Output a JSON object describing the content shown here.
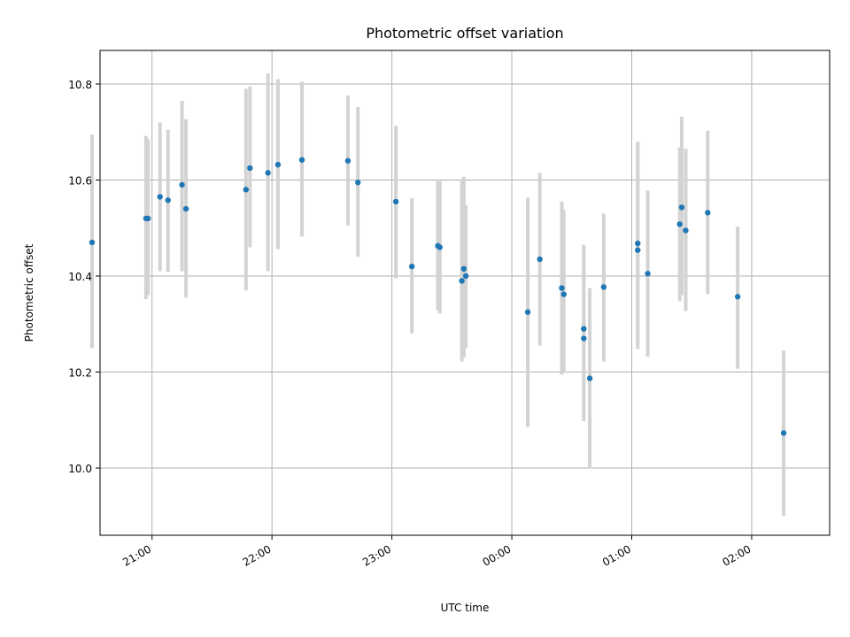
{
  "chart_data": {
    "type": "scatter",
    "title": "Photometric offset variation",
    "xlabel": "UTC time",
    "ylabel": "Photometric offset",
    "xlim": [
      "20:34",
      "02:39"
    ],
    "ylim": [
      9.86,
      10.87
    ],
    "x_ticks": [
      "21:00",
      "22:00",
      "23:00",
      "00:00",
      "01:00",
      "02:00"
    ],
    "y_ticks": [
      "10.0",
      "10.2",
      "10.4",
      "10.6",
      "10.8"
    ],
    "grid": true,
    "colors": {
      "points": "#1f77b4",
      "errorbars": "#d3d3d3",
      "grid": "#b0b0b0"
    },
    "series": [
      {
        "x": [
          "20:30",
          "20:57",
          "20:58",
          "21:04",
          "21:08",
          "21:15",
          "21:17",
          "21:47",
          "21:49",
          "21:58",
          "22:03",
          "22:15",
          "22:38",
          "22:43",
          "23:02",
          "23:10",
          "23:23",
          "23:24",
          "23:35",
          "23:36",
          "23:37",
          "00:08",
          "00:14",
          "00:25",
          "00:26",
          "00:36",
          "00:36",
          "00:39",
          "00:46",
          "01:03",
          "01:03",
          "01:08",
          "01:24",
          "01:25",
          "01:27",
          "01:38",
          "01:53",
          "02:16"
        ],
        "y": [
          10.47,
          10.52,
          10.52,
          10.565,
          10.558,
          10.59,
          10.54,
          10.58,
          10.625,
          10.615,
          10.632,
          10.642,
          10.64,
          10.595,
          10.555,
          10.42,
          10.463,
          10.46,
          10.39,
          10.415,
          10.4,
          10.325,
          10.435,
          10.375,
          10.362,
          10.29,
          10.27,
          10.187,
          10.377,
          10.468,
          10.454,
          10.405,
          10.508,
          10.543,
          10.495,
          10.532,
          10.357,
          10.073
        ],
        "yerr_low": [
          10.25,
          10.352,
          10.36,
          10.41,
          10.408,
          10.41,
          10.355,
          10.37,
          10.46,
          10.41,
          10.456,
          10.482,
          10.505,
          10.44,
          10.395,
          10.28,
          10.328,
          10.322,
          10.222,
          10.23,
          10.25,
          10.085,
          10.255,
          10.195,
          10.2,
          10.12,
          10.098,
          10.002,
          10.222,
          10.248,
          10.268,
          10.232,
          10.348,
          10.36,
          10.327,
          10.362,
          10.207,
          9.9
        ],
        "yerr_high": [
          10.695,
          10.692,
          10.685,
          10.72,
          10.705,
          10.765,
          10.727,
          10.79,
          10.795,
          10.822,
          10.81,
          10.805,
          10.776,
          10.752,
          10.713,
          10.562,
          10.598,
          10.598,
          10.598,
          10.607,
          10.548,
          10.563,
          10.615,
          10.555,
          10.538,
          10.465,
          10.443,
          10.375,
          10.53,
          10.68,
          10.665,
          10.578,
          10.668,
          10.732,
          10.665,
          10.703,
          10.503,
          10.245
        ]
      }
    ]
  }
}
